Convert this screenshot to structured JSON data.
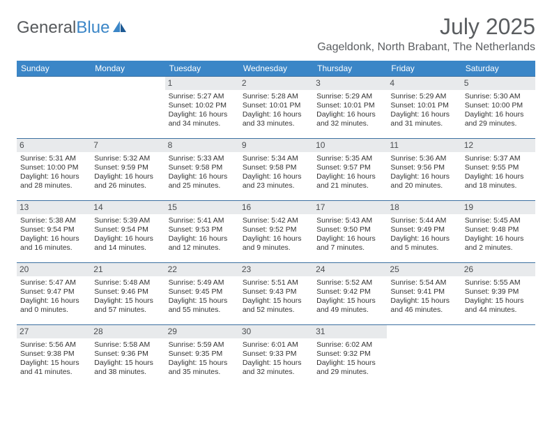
{
  "logo": {
    "part1": "General",
    "part2": "Blue"
  },
  "title": "July 2025",
  "location": "Gageldonk, North Brabant, The Netherlands",
  "colors": {
    "header_bar": "#3b86c7",
    "daynum_bg": "#e8eaec",
    "row_border": "#3b6fa0",
    "text": "#333333",
    "title_text": "#5a5d60"
  },
  "weekdays": [
    "Sunday",
    "Monday",
    "Tuesday",
    "Wednesday",
    "Thursday",
    "Friday",
    "Saturday"
  ],
  "weeks": [
    [
      null,
      null,
      {
        "n": "1",
        "sr": "Sunrise: 5:27 AM",
        "ss": "Sunset: 10:02 PM",
        "d1": "Daylight: 16 hours",
        "d2": "and 34 minutes."
      },
      {
        "n": "2",
        "sr": "Sunrise: 5:28 AM",
        "ss": "Sunset: 10:01 PM",
        "d1": "Daylight: 16 hours",
        "d2": "and 33 minutes."
      },
      {
        "n": "3",
        "sr": "Sunrise: 5:29 AM",
        "ss": "Sunset: 10:01 PM",
        "d1": "Daylight: 16 hours",
        "d2": "and 32 minutes."
      },
      {
        "n": "4",
        "sr": "Sunrise: 5:29 AM",
        "ss": "Sunset: 10:01 PM",
        "d1": "Daylight: 16 hours",
        "d2": "and 31 minutes."
      },
      {
        "n": "5",
        "sr": "Sunrise: 5:30 AM",
        "ss": "Sunset: 10:00 PM",
        "d1": "Daylight: 16 hours",
        "d2": "and 29 minutes."
      }
    ],
    [
      {
        "n": "6",
        "sr": "Sunrise: 5:31 AM",
        "ss": "Sunset: 10:00 PM",
        "d1": "Daylight: 16 hours",
        "d2": "and 28 minutes."
      },
      {
        "n": "7",
        "sr": "Sunrise: 5:32 AM",
        "ss": "Sunset: 9:59 PM",
        "d1": "Daylight: 16 hours",
        "d2": "and 26 minutes."
      },
      {
        "n": "8",
        "sr": "Sunrise: 5:33 AM",
        "ss": "Sunset: 9:58 PM",
        "d1": "Daylight: 16 hours",
        "d2": "and 25 minutes."
      },
      {
        "n": "9",
        "sr": "Sunrise: 5:34 AM",
        "ss": "Sunset: 9:58 PM",
        "d1": "Daylight: 16 hours",
        "d2": "and 23 minutes."
      },
      {
        "n": "10",
        "sr": "Sunrise: 5:35 AM",
        "ss": "Sunset: 9:57 PM",
        "d1": "Daylight: 16 hours",
        "d2": "and 21 minutes."
      },
      {
        "n": "11",
        "sr": "Sunrise: 5:36 AM",
        "ss": "Sunset: 9:56 PM",
        "d1": "Daylight: 16 hours",
        "d2": "and 20 minutes."
      },
      {
        "n": "12",
        "sr": "Sunrise: 5:37 AM",
        "ss": "Sunset: 9:55 PM",
        "d1": "Daylight: 16 hours",
        "d2": "and 18 minutes."
      }
    ],
    [
      {
        "n": "13",
        "sr": "Sunrise: 5:38 AM",
        "ss": "Sunset: 9:54 PM",
        "d1": "Daylight: 16 hours",
        "d2": "and 16 minutes."
      },
      {
        "n": "14",
        "sr": "Sunrise: 5:39 AM",
        "ss": "Sunset: 9:54 PM",
        "d1": "Daylight: 16 hours",
        "d2": "and 14 minutes."
      },
      {
        "n": "15",
        "sr": "Sunrise: 5:41 AM",
        "ss": "Sunset: 9:53 PM",
        "d1": "Daylight: 16 hours",
        "d2": "and 12 minutes."
      },
      {
        "n": "16",
        "sr": "Sunrise: 5:42 AM",
        "ss": "Sunset: 9:52 PM",
        "d1": "Daylight: 16 hours",
        "d2": "and 9 minutes."
      },
      {
        "n": "17",
        "sr": "Sunrise: 5:43 AM",
        "ss": "Sunset: 9:50 PM",
        "d1": "Daylight: 16 hours",
        "d2": "and 7 minutes."
      },
      {
        "n": "18",
        "sr": "Sunrise: 5:44 AM",
        "ss": "Sunset: 9:49 PM",
        "d1": "Daylight: 16 hours",
        "d2": "and 5 minutes."
      },
      {
        "n": "19",
        "sr": "Sunrise: 5:45 AM",
        "ss": "Sunset: 9:48 PM",
        "d1": "Daylight: 16 hours",
        "d2": "and 2 minutes."
      }
    ],
    [
      {
        "n": "20",
        "sr": "Sunrise: 5:47 AM",
        "ss": "Sunset: 9:47 PM",
        "d1": "Daylight: 16 hours",
        "d2": "and 0 minutes."
      },
      {
        "n": "21",
        "sr": "Sunrise: 5:48 AM",
        "ss": "Sunset: 9:46 PM",
        "d1": "Daylight: 15 hours",
        "d2": "and 57 minutes."
      },
      {
        "n": "22",
        "sr": "Sunrise: 5:49 AM",
        "ss": "Sunset: 9:45 PM",
        "d1": "Daylight: 15 hours",
        "d2": "and 55 minutes."
      },
      {
        "n": "23",
        "sr": "Sunrise: 5:51 AM",
        "ss": "Sunset: 9:43 PM",
        "d1": "Daylight: 15 hours",
        "d2": "and 52 minutes."
      },
      {
        "n": "24",
        "sr": "Sunrise: 5:52 AM",
        "ss": "Sunset: 9:42 PM",
        "d1": "Daylight: 15 hours",
        "d2": "and 49 minutes."
      },
      {
        "n": "25",
        "sr": "Sunrise: 5:54 AM",
        "ss": "Sunset: 9:41 PM",
        "d1": "Daylight: 15 hours",
        "d2": "and 46 minutes."
      },
      {
        "n": "26",
        "sr": "Sunrise: 5:55 AM",
        "ss": "Sunset: 9:39 PM",
        "d1": "Daylight: 15 hours",
        "d2": "and 44 minutes."
      }
    ],
    [
      {
        "n": "27",
        "sr": "Sunrise: 5:56 AM",
        "ss": "Sunset: 9:38 PM",
        "d1": "Daylight: 15 hours",
        "d2": "and 41 minutes."
      },
      {
        "n": "28",
        "sr": "Sunrise: 5:58 AM",
        "ss": "Sunset: 9:36 PM",
        "d1": "Daylight: 15 hours",
        "d2": "and 38 minutes."
      },
      {
        "n": "29",
        "sr": "Sunrise: 5:59 AM",
        "ss": "Sunset: 9:35 PM",
        "d1": "Daylight: 15 hours",
        "d2": "and 35 minutes."
      },
      {
        "n": "30",
        "sr": "Sunrise: 6:01 AM",
        "ss": "Sunset: 9:33 PM",
        "d1": "Daylight: 15 hours",
        "d2": "and 32 minutes."
      },
      {
        "n": "31",
        "sr": "Sunrise: 6:02 AM",
        "ss": "Sunset: 9:32 PM",
        "d1": "Daylight: 15 hours",
        "d2": "and 29 minutes."
      },
      null,
      null
    ]
  ]
}
